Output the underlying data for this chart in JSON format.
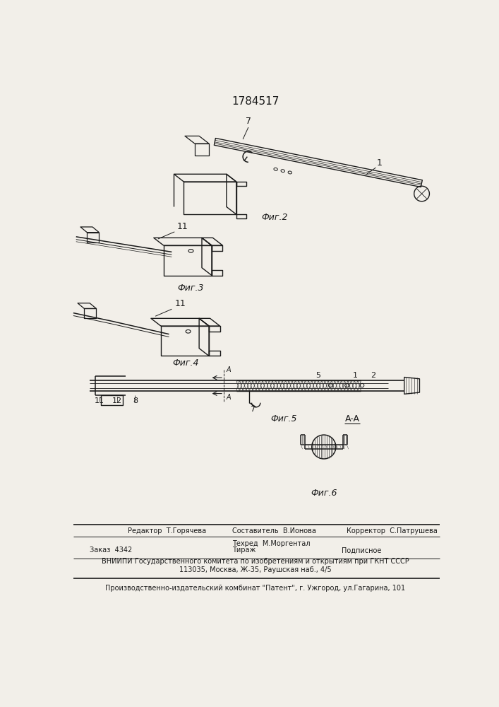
{
  "bg_color": "#f2efe9",
  "title": "1784517",
  "fig2_label": "Фиг.2",
  "fig3_label": "Фиг.3",
  "fig4_label": "Фиг.4",
  "fig5_label": "Фиг.5",
  "fig6_label": "Фиг.6",
  "footer_line1": "Редактор  Т.Горячева",
  "footer_line1b": "Составитель  В.Ионова",
  "footer_line1c": "Корректор  С.Патрушева",
  "footer_line1d": "Техред  М.Моргентал",
  "footer_line2a": "Заказ  4342",
  "footer_line2b": "Тираж",
  "footer_line2c": "Подписное",
  "footer_line3": "ВНИИПИ Государственного комитета по изобретениям и открытиям при ГКНТ СССР",
  "footer_line4": "113035, Москва, Ж-35, Раушская наб., 4/5",
  "footer_line5": "Производственно-издательский комбинат \"Патент\", г. Ужгород, ул.Гагарина, 101",
  "line_color": "#1a1a1a",
  "label_fs": 9,
  "annot_fs": 8,
  "footer_fs": 7
}
